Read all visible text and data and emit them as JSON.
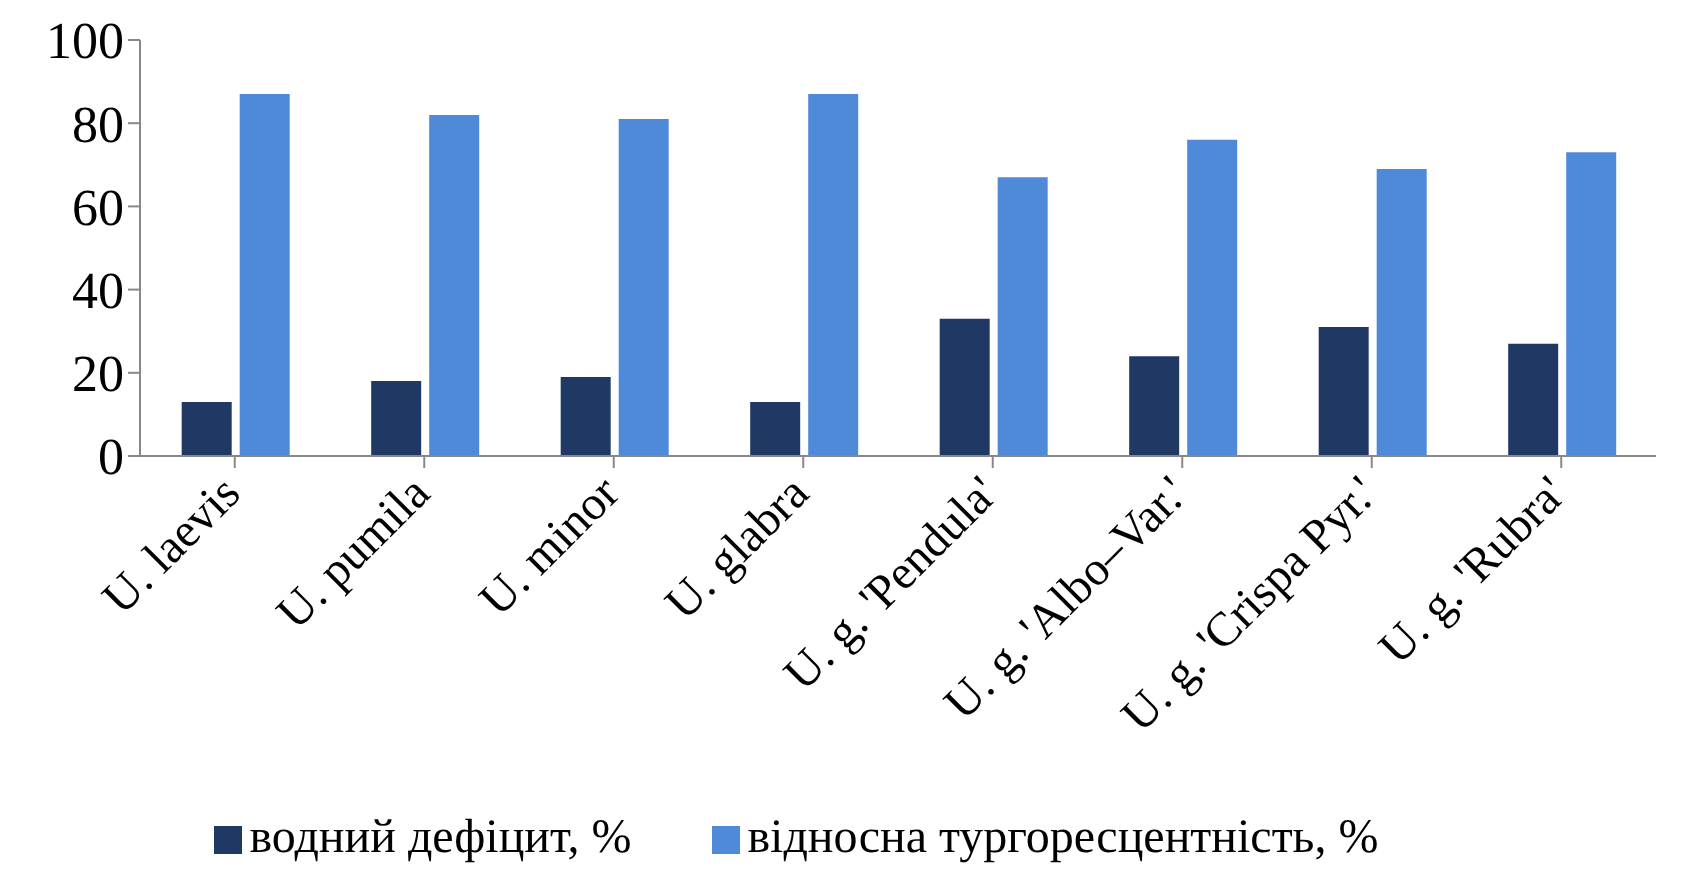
{
  "chart_data": {
    "type": "bar",
    "categories": [
      "U. laevis",
      "U. pumila",
      "U. minor",
      "U. glabra",
      "U. g. 'Pendula'",
      "U. g. 'Albo–Var.'",
      "U. g. 'Crispa Pyr.'",
      "U. g. 'Rubra'"
    ],
    "series": [
      {
        "name": "водний дефіцит, %",
        "color": "#1f3864",
        "values": [
          13,
          18,
          19,
          13,
          33,
          24,
          31,
          27
        ]
      },
      {
        "name": "відносна тургоресцентність, %",
        "color": "#4f8ad8",
        "values": [
          87,
          82,
          81,
          87,
          67,
          76,
          69,
          73
        ]
      }
    ],
    "ylim": [
      0,
      100
    ],
    "yticks": [
      0,
      20,
      40,
      60,
      80,
      100
    ],
    "grid": false,
    "legend": "bottom"
  }
}
